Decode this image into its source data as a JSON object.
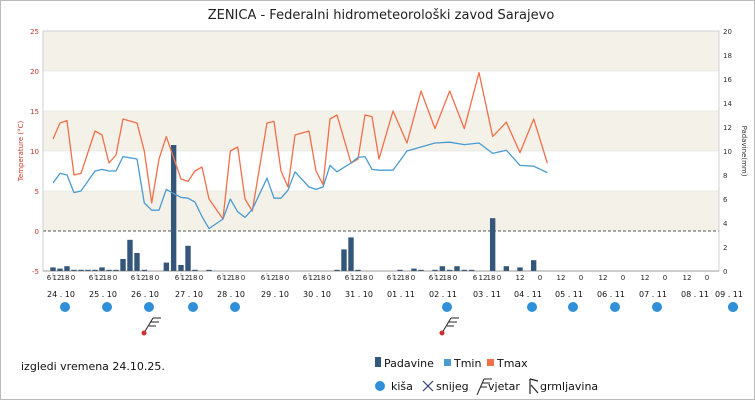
{
  "header": {
    "title": "ZENICA - Federalni hidrometeorološki zavod Sarajevo"
  },
  "footer": {
    "outlook_text": "izgledi vremena 24.10.25."
  },
  "legend": {
    "series": [
      {
        "key": "precip",
        "label": "Padavine",
        "color": "#34567a"
      },
      {
        "key": "tmin",
        "label": "Tmin",
        "color": "#4a9bd0"
      },
      {
        "key": "tmax",
        "label": "Tmax",
        "color": "#f0704a"
      }
    ],
    "symbols": [
      {
        "key": "rain",
        "label": "kiša",
        "icon": "rain-dot-icon",
        "color": "#2f8fd8"
      },
      {
        "key": "snow",
        "label": "snijeg",
        "icon": "snow-cross-icon",
        "color": "#35407a"
      },
      {
        "key": "wind",
        "label": "vjetar",
        "icon": "wind-flag-icon",
        "color": "#222222"
      },
      {
        "key": "storm",
        "label": "grmljavina",
        "icon": "lightning-icon",
        "color": "#222222"
      }
    ]
  },
  "chart_data": {
    "type": "line+bar",
    "title": "ZENICA - Federalni hidrometeorološki zavod Sarajevo",
    "ylabel": "Temperature (°C)",
    "y2label": "Padavine(mm)",
    "ylim": [
      -5,
      25
    ],
    "y2lim": [
      0,
      20
    ],
    "y_ticks": [
      -5,
      0,
      5,
      10,
      15,
      20,
      25
    ],
    "y2_ticks": [
      0,
      2,
      4,
      6,
      8,
      10,
      12,
      14,
      16,
      18,
      20
    ],
    "x_start": "2025-10-24 04:00",
    "dates": [
      "24 . 10",
      "25 . 10",
      "26 . 10",
      "27 . 10",
      "28 . 10",
      "29 . 10",
      "30 . 10",
      "31 . 10",
      "01 . 11",
      "02 . 11",
      "03 . 11",
      "04 . 11",
      "05 . 11",
      "06 . 11",
      "07 . 11",
      "08 . 11",
      "09 . 11"
    ],
    "hour_labels_hourly_days": [
      "6",
      "12",
      "18",
      "0"
    ],
    "hour_labels_6h_days": [
      "12",
      "0"
    ],
    "series": [
      {
        "name": "Tmax",
        "color": "#f0704a",
        "points": [
          [
            0,
            11.5
          ],
          [
            0.167,
            13.5
          ],
          [
            0.333,
            13.8
          ],
          [
            0.5,
            7
          ],
          [
            0.667,
            7.2
          ],
          [
            1,
            12.5
          ],
          [
            1.167,
            12
          ],
          [
            1.333,
            8.5
          ],
          [
            1.5,
            9.5
          ],
          [
            1.667,
            14
          ],
          [
            2,
            13.5
          ],
          [
            2.167,
            10
          ],
          [
            2.333,
            3.5
          ],
          [
            2.5,
            9
          ],
          [
            2.667,
            11.8
          ],
          [
            3,
            6.5
          ],
          [
            3.167,
            6.2
          ],
          [
            3.333,
            7.5
          ],
          [
            3.5,
            8
          ],
          [
            3.667,
            4
          ],
          [
            4,
            1.5
          ],
          [
            4.167,
            10
          ],
          [
            4.333,
            10.5
          ],
          [
            4.5,
            4
          ],
          [
            4.667,
            2.5
          ],
          [
            5,
            13.5
          ],
          [
            5.167,
            13.7
          ],
          [
            5.333,
            7.5
          ],
          [
            5.5,
            5.5
          ],
          [
            5.667,
            12
          ],
          [
            6,
            12.5
          ],
          [
            6.167,
            7.5
          ],
          [
            6.333,
            5.8
          ],
          [
            6.5,
            14
          ],
          [
            6.667,
            14.5
          ],
          [
            7,
            8.5
          ],
          [
            7.167,
            9
          ],
          [
            7.333,
            14.5
          ],
          [
            7.5,
            14.3
          ],
          [
            7.667,
            9
          ],
          [
            8,
            15
          ],
          [
            8.333,
            11
          ],
          [
            8.667,
            17.5
          ],
          [
            9,
            12.8
          ],
          [
            9.333,
            17.5
          ],
          [
            9.667,
            12.8
          ],
          [
            10,
            19.8
          ],
          [
            10.333,
            11.8
          ],
          [
            10.667,
            13.6
          ],
          [
            11,
            9.8
          ],
          [
            11.333,
            14
          ],
          [
            11.667,
            8.5
          ]
        ]
      },
      {
        "name": "Tmin",
        "color": "#4a9bd0",
        "points": [
          [
            0,
            6
          ],
          [
            0.167,
            7.2
          ],
          [
            0.333,
            7
          ],
          [
            0.5,
            4.8
          ],
          [
            0.667,
            5
          ],
          [
            1,
            7.5
          ],
          [
            1.167,
            7.7
          ],
          [
            1.333,
            7.5
          ],
          [
            1.5,
            7.5
          ],
          [
            1.667,
            9.3
          ],
          [
            2,
            9
          ],
          [
            2.167,
            3.5
          ],
          [
            2.333,
            2.6
          ],
          [
            2.5,
            2.6
          ],
          [
            2.667,
            5.2
          ],
          [
            3,
            4.2
          ],
          [
            3.167,
            4.1
          ],
          [
            3.333,
            3.6
          ],
          [
            3.5,
            1.8
          ],
          [
            3.667,
            0.3
          ],
          [
            4,
            1.5
          ],
          [
            4.167,
            4
          ],
          [
            4.333,
            2.4
          ],
          [
            4.5,
            1.7
          ],
          [
            4.667,
            2.7
          ],
          [
            5,
            6.6
          ],
          [
            5.167,
            4.1
          ],
          [
            5.333,
            4.1
          ],
          [
            5.5,
            5.1
          ],
          [
            5.667,
            7.4
          ],
          [
            6,
            5.5
          ],
          [
            6.167,
            5.2
          ],
          [
            6.333,
            5.5
          ],
          [
            6.5,
            8.2
          ],
          [
            6.667,
            7.4
          ],
          [
            7,
            8.5
          ],
          [
            7.167,
            9.2
          ],
          [
            7.333,
            9.3
          ],
          [
            7.5,
            7.7
          ],
          [
            7.667,
            7.6
          ],
          [
            8,
            7.6
          ],
          [
            8.333,
            10
          ],
          [
            8.667,
            10.5
          ],
          [
            9,
            11
          ],
          [
            9.333,
            11.1
          ],
          [
            9.667,
            10.8
          ],
          [
            10,
            11
          ],
          [
            10.333,
            9.7
          ],
          [
            10.667,
            10.1
          ],
          [
            11,
            8.2
          ],
          [
            11.333,
            8.1
          ],
          [
            11.667,
            7.3
          ]
        ]
      }
    ],
    "bars": {
      "name": "Padavine",
      "unit": "mm",
      "color": "#34567a",
      "points": [
        [
          0.0,
          0.3
        ],
        [
          0.167,
          0.2
        ],
        [
          0.333,
          0.4
        ],
        [
          0.5,
          0.1
        ],
        [
          0.667,
          0.1
        ],
        [
          0.833,
          0.1
        ],
        [
          1.0,
          0.1
        ],
        [
          1.167,
          0.3
        ],
        [
          1.333,
          0.1
        ],
        [
          1.5,
          0.1
        ],
        [
          1.667,
          1
        ],
        [
          1.833,
          2.6
        ],
        [
          2.0,
          1.5
        ],
        [
          2.167,
          0.1
        ],
        [
          2.333,
          0
        ],
        [
          2.5,
          0
        ],
        [
          2.667,
          0.7
        ],
        [
          2.833,
          10.5
        ],
        [
          3.0,
          0.5
        ],
        [
          3.167,
          2.1
        ],
        [
          3.333,
          0.1
        ],
        [
          3.5,
          0
        ],
        [
          3.667,
          0.1
        ],
        [
          3.833,
          0
        ],
        [
          4.0,
          0
        ],
        [
          4.167,
          0
        ],
        [
          4.333,
          0
        ],
        [
          4.5,
          0
        ],
        [
          4.667,
          0
        ],
        [
          4.833,
          0
        ],
        [
          5.0,
          0
        ],
        [
          5.167,
          0
        ],
        [
          5.333,
          0
        ],
        [
          5.5,
          0
        ],
        [
          5.667,
          0
        ],
        [
          5.833,
          0
        ],
        [
          6.0,
          0
        ],
        [
          6.167,
          0
        ],
        [
          6.333,
          0
        ],
        [
          6.5,
          0
        ],
        [
          6.667,
          0.1
        ],
        [
          6.833,
          1.8
        ],
        [
          7.0,
          2.8
        ],
        [
          7.167,
          0.1
        ],
        [
          7.333,
          0
        ],
        [
          7.5,
          0
        ],
        [
          7.667,
          0
        ],
        [
          7.833,
          0
        ],
        [
          8.0,
          0
        ],
        [
          8.167,
          0.1
        ],
        [
          8.5,
          0.2
        ],
        [
          8.667,
          0.1
        ],
        [
          8.833,
          0
        ],
        [
          9.0,
          0.1
        ],
        [
          9.167,
          0.4
        ],
        [
          9.333,
          0.1
        ],
        [
          9.5,
          0.4
        ],
        [
          9.667,
          0.1
        ],
        [
          9.833,
          0.1
        ],
        [
          10.0,
          0
        ],
        [
          10.167,
          0
        ],
        [
          10.333,
          4.4
        ],
        [
          10.5,
          0
        ],
        [
          10.667,
          0.4
        ],
        [
          10.833,
          0
        ],
        [
          11.0,
          0.3
        ],
        [
          11.167,
          0
        ],
        [
          11.333,
          0.9
        ]
      ]
    },
    "weather_symbols": [
      {
        "type": "rain",
        "day": 0
      },
      {
        "type": "rain",
        "day": 1
      },
      {
        "type": "rain",
        "day": 2
      },
      {
        "type": "rain",
        "day": 3
      },
      {
        "type": "rain",
        "day": 4
      },
      {
        "type": "rain",
        "day": 9
      },
      {
        "type": "rain",
        "day": 11
      },
      {
        "type": "rain",
        "day": 12
      },
      {
        "type": "rain",
        "day": 13
      },
      {
        "type": "rain",
        "day": 14
      },
      {
        "type": "rain",
        "day": 16
      },
      {
        "type": "rain",
        "day": 16.333
      },
      {
        "type": "wind",
        "day": 2
      },
      {
        "type": "wind",
        "day": 9
      }
    ],
    "zero_line": "dashed",
    "grid": true
  }
}
